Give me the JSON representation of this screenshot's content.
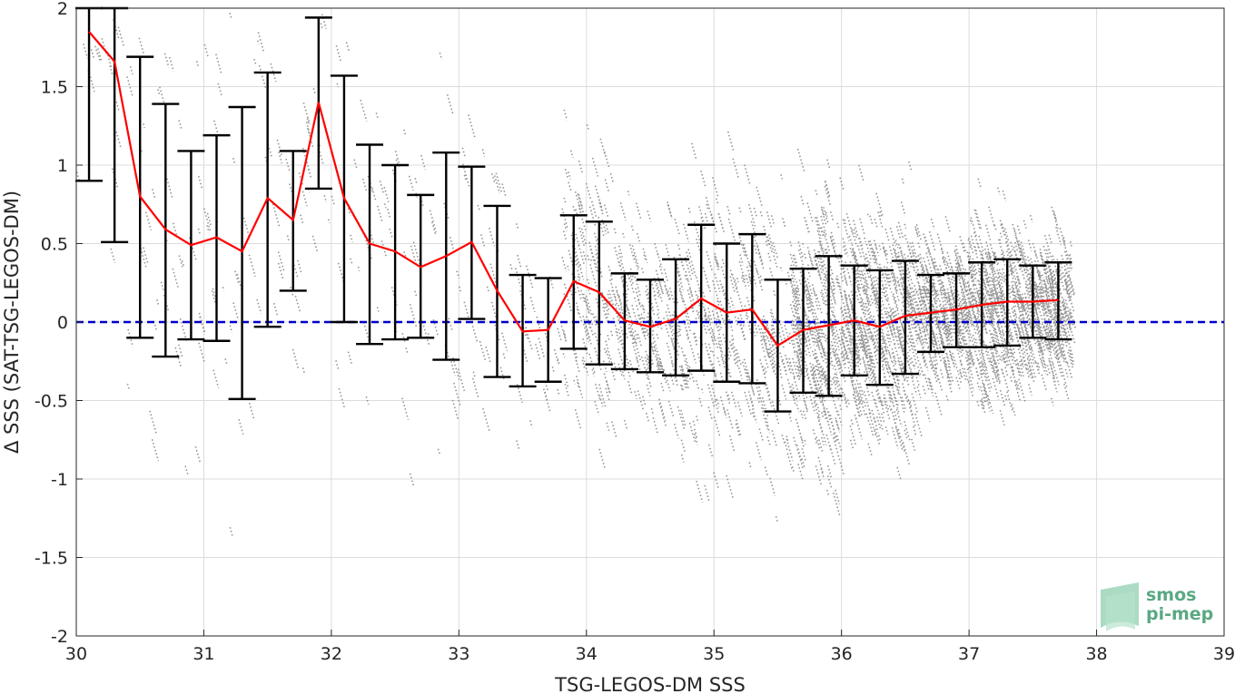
{
  "chart_data": {
    "type": "line",
    "title": "",
    "xlabel": "TSG-LEGOS-DM SSS",
    "ylabel": "Δ SSS (SAT-TSG-LEGOS-DM)",
    "xlim": [
      30,
      39
    ],
    "ylim": [
      -2,
      2
    ],
    "x_ticks": [
      30,
      31,
      32,
      33,
      34,
      35,
      36,
      37,
      38,
      39
    ],
    "y_ticks": [
      -2,
      -1.5,
      -1,
      -0.5,
      0,
      0.5,
      1,
      1.5,
      2
    ],
    "grid": true,
    "reference_line": {
      "y": 0,
      "color": "#0000cc",
      "style": "dashed"
    },
    "mean_color": "#ff0000",
    "errorbar_color": "#000000",
    "scatter_color": "#808080",
    "series": [
      {
        "x": [
          30.1,
          30.3,
          30.5,
          30.7,
          30.9,
          31.1,
          31.3,
          31.5,
          31.7,
          31.9,
          32.1,
          32.3,
          32.5,
          32.7,
          32.9,
          33.1,
          33.3,
          33.5,
          33.7,
          33.9,
          34.1,
          34.3,
          34.5,
          34.7,
          34.9,
          35.1,
          35.3,
          35.5,
          35.7,
          35.9,
          36.1,
          36.3,
          36.5,
          36.7,
          36.9,
          37.1,
          37.3,
          37.5,
          37.7
        ],
        "mean": [
          1.85,
          1.66,
          0.8,
          0.59,
          0.49,
          0.54,
          0.45,
          0.79,
          0.65,
          1.4,
          0.79,
          0.5,
          0.45,
          0.35,
          0.42,
          0.51,
          0.2,
          -0.06,
          -0.05,
          0.26,
          0.19,
          0.01,
          -0.03,
          0.02,
          0.15,
          0.06,
          0.08,
          -0.15,
          -0.05,
          -0.02,
          0.01,
          -0.03,
          0.04,
          0.06,
          0.08,
          0.11,
          0.13,
          0.13,
          0.14
        ],
        "lower": [
          0.9,
          0.51,
          -0.1,
          -0.22,
          -0.11,
          -0.12,
          -0.49,
          -0.03,
          0.2,
          0.85,
          0.0,
          -0.14,
          -0.11,
          -0.1,
          -0.24,
          0.02,
          -0.35,
          -0.41,
          -0.38,
          -0.17,
          -0.27,
          -0.3,
          -0.32,
          -0.34,
          -0.31,
          -0.38,
          -0.39,
          -0.57,
          -0.45,
          -0.47,
          -0.34,
          -0.4,
          -0.33,
          -0.19,
          -0.16,
          -0.16,
          -0.15,
          -0.1,
          -0.11
        ],
        "upper": [
          2.0,
          2.0,
          1.69,
          1.39,
          1.09,
          1.19,
          1.37,
          1.59,
          1.09,
          1.94,
          1.57,
          1.13,
          1.0,
          0.81,
          1.08,
          0.99,
          0.74,
          0.3,
          0.28,
          0.68,
          0.64,
          0.31,
          0.27,
          0.4,
          0.62,
          0.5,
          0.56,
          0.27,
          0.34,
          0.42,
          0.36,
          0.33,
          0.39,
          0.3,
          0.31,
          0.38,
          0.4,
          0.36,
          0.38
        ]
      }
    ]
  },
  "logo": {
    "line1": "smos",
    "line2": "pi-mep"
  }
}
